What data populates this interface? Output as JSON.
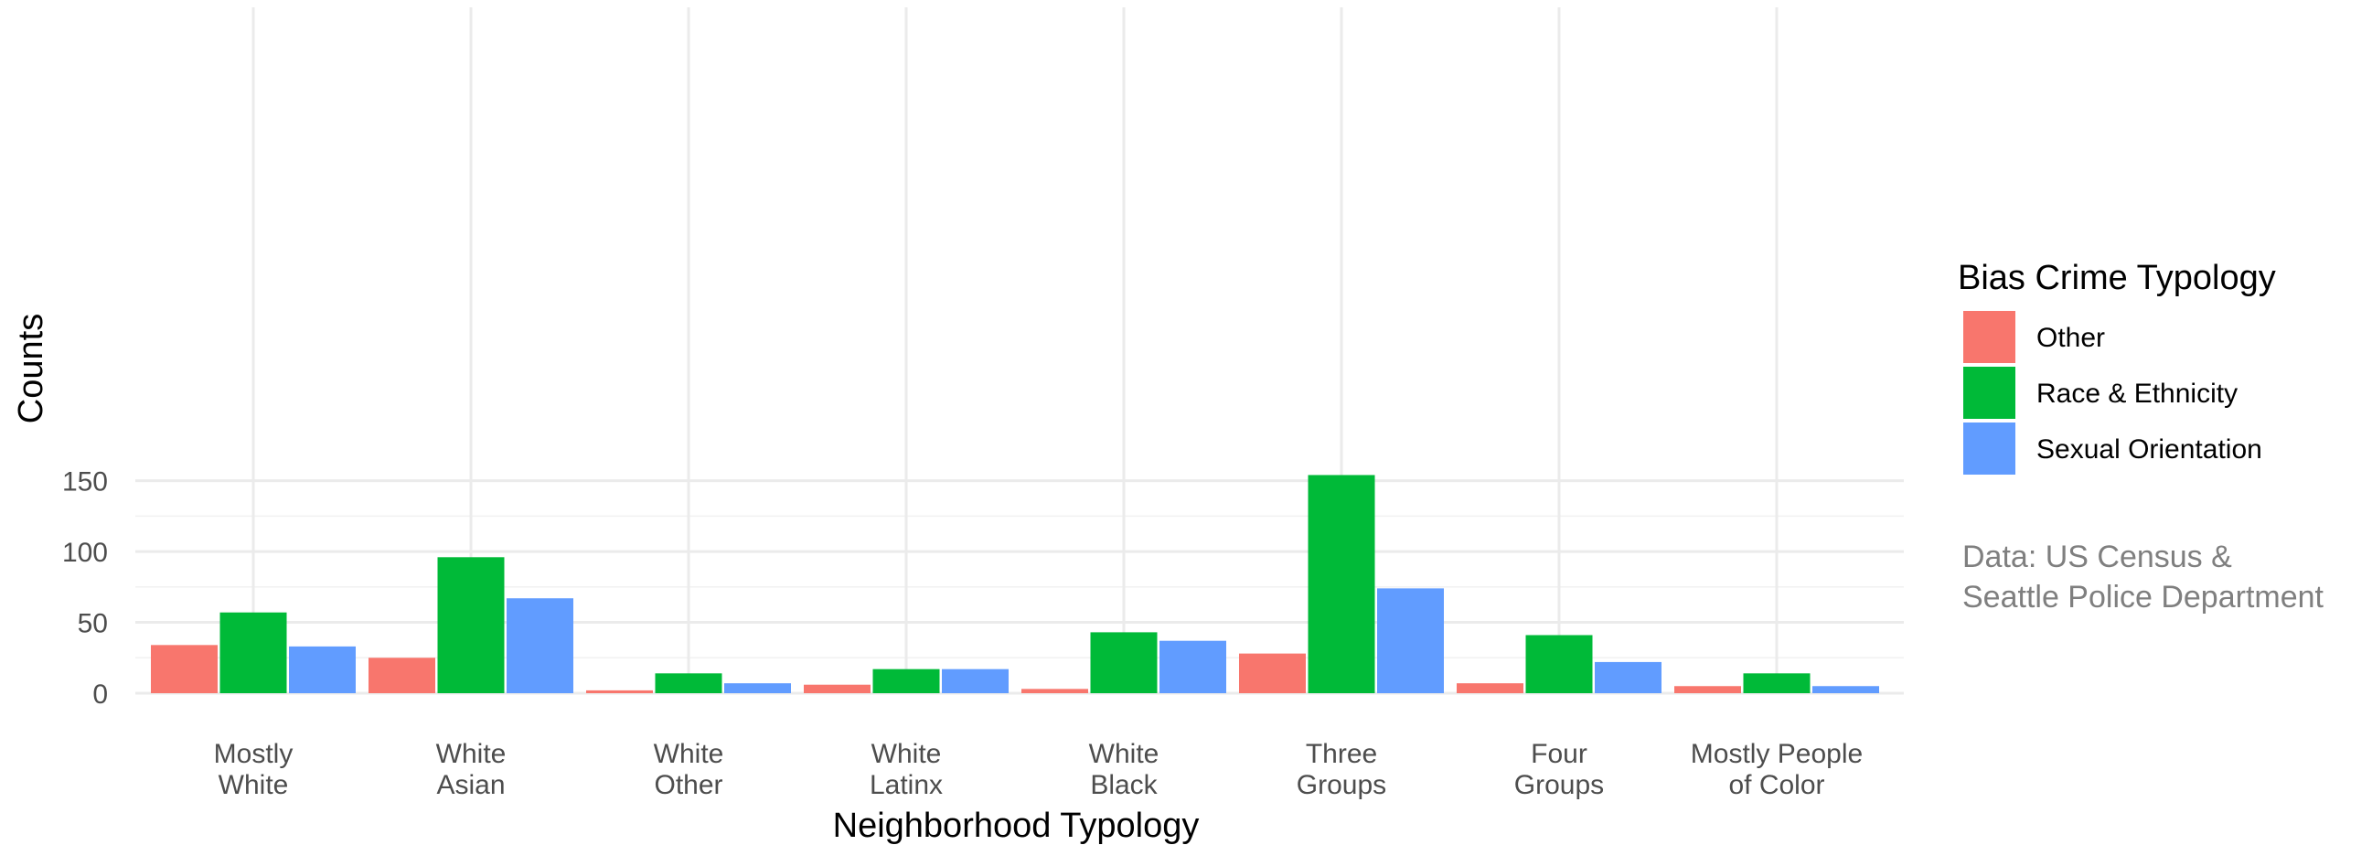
{
  "chart_data": {
    "type": "bar",
    "title": "",
    "xlabel": "Neighborhood Typology",
    "ylabel": "Counts",
    "ylim": [
      0,
      160
    ],
    "yticks": [
      0,
      50,
      100,
      150
    ],
    "grid": true,
    "legend_position": "right",
    "categories": [
      [
        "Mostly",
        "White"
      ],
      [
        "White",
        "Asian"
      ],
      [
        "White",
        "Other"
      ],
      [
        "White",
        "Latinx"
      ],
      [
        "White",
        "Black"
      ],
      [
        "Three",
        "Groups"
      ],
      [
        "Four",
        "Groups"
      ],
      [
        "Mostly People",
        "of Color"
      ]
    ],
    "legend_title": "Bias Crime Typology",
    "series": [
      {
        "name": "Other",
        "color": "#F8766D",
        "values": [
          34,
          25,
          2,
          6,
          3,
          28,
          7,
          5
        ]
      },
      {
        "name": "Race & Ethnicity",
        "color": "#00BA38",
        "values": [
          57,
          96,
          14,
          17,
          43,
          154,
          41,
          14
        ]
      },
      {
        "name": "Sexual Orientation",
        "color": "#619CFF",
        "values": [
          33,
          67,
          7,
          17,
          37,
          74,
          22,
          5
        ]
      }
    ],
    "caption": [
      "Data: US Census &",
      "Seattle Police Department"
    ]
  }
}
